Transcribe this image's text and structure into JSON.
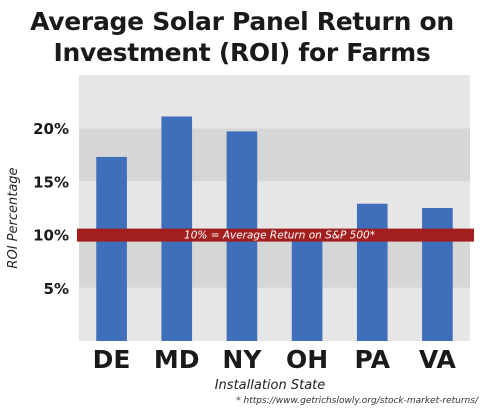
{
  "chart_data": {
    "type": "bar",
    "title": "Average Solar Panel Return on Investment (ROI) for Farms",
    "xlabel": "Installation State",
    "ylabel": "ROI Percentage",
    "categories": [
      "DE",
      "MD",
      "NY",
      "OH",
      "PA",
      "VA"
    ],
    "values": [
      17.3,
      21.1,
      19.7,
      9.5,
      12.9,
      12.5
    ],
    "ylim": [
      0,
      25
    ],
    "yticks": [
      5,
      10,
      15,
      20
    ],
    "ytick_labels": [
      "5%",
      "10%",
      "15%",
      "20%"
    ],
    "grid": "alternating horizontal bands",
    "bar_color": "#3f6fba",
    "reference_line": {
      "value": 10,
      "label": "10% = Average Return on S&P 500*",
      "color": "#a31f1f"
    },
    "footnote": "* https://www.getrichslowly.org/stock-market-returns/"
  }
}
